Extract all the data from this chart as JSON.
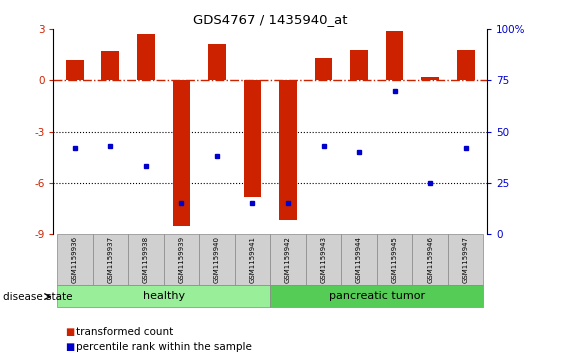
{
  "title": "GDS4767 / 1435940_at",
  "samples": [
    "GSM1159936",
    "GSM1159937",
    "GSM1159938",
    "GSM1159939",
    "GSM1159940",
    "GSM1159941",
    "GSM1159942",
    "GSM1159943",
    "GSM1159944",
    "GSM1159945",
    "GSM1159946",
    "GSM1159947"
  ],
  "transformed_count": [
    1.2,
    1.7,
    2.7,
    -8.5,
    2.1,
    -6.8,
    -8.2,
    1.3,
    1.8,
    2.9,
    0.2,
    1.8
  ],
  "percentile_rank": [
    42,
    43,
    33,
    15,
    38,
    15,
    15,
    43,
    40,
    70,
    25,
    42
  ],
  "ylim_left": [
    -9,
    3
  ],
  "ylim_right": [
    0,
    100
  ],
  "yticks_left": [
    -9,
    -6,
    -3,
    0,
    3
  ],
  "yticks_right": [
    0,
    25,
    50,
    75,
    100
  ],
  "bar_color": "#cc2200",
  "dot_color": "#0000cc",
  "hline_color": "#cc2200",
  "healthy_color": "#99ee99",
  "tumor_color": "#55cc55",
  "label_healthy": "healthy",
  "label_tumor": "pancreatic tumor",
  "disease_state_label": "disease state",
  "legend_bar_label": "transformed count",
  "legend_dot_label": "percentile rank within the sample",
  "n_healthy": 6,
  "n_tumor": 6,
  "bar_width": 0.5
}
